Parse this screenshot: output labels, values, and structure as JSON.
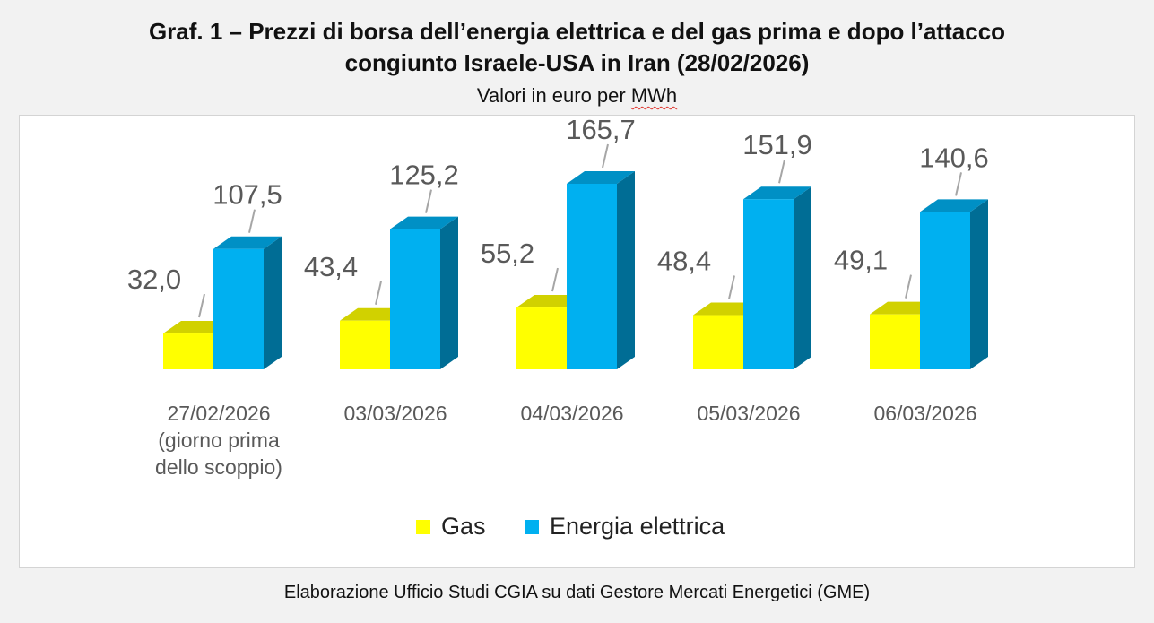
{
  "header": {
    "title_line1": "Graf. 1 – Prezzi di borsa dell’energia elettrica e del gas prima e dopo l’attacco",
    "title_line2": "congiunto Israele-USA in Iran (28/02/2026)",
    "subtitle_prefix": "Valori in euro per ",
    "subtitle_unit": "MWh"
  },
  "footer": {
    "source": "Elaborazione Ufficio Studi CGIA su dati Gestore Mercati Energetici (GME)"
  },
  "chart_data": {
    "type": "bar",
    "style": "3d-clustered-column",
    "title": "Graf. 1 – Prezzi di borsa dell’energia elettrica e del gas prima e dopo l’attacco congiunto Israele-USA in Iran (28/02/2026)",
    "subtitle": "Valori in euro per MWh",
    "categories": [
      [
        "27/02/2026",
        "(giorno prima",
        "dello scoppio)"
      ],
      [
        "03/03/2026"
      ],
      [
        "04/03/2026"
      ],
      [
        "05/03/2026"
      ],
      [
        "06/03/2026"
      ]
    ],
    "series": [
      {
        "name": "Gas",
        "color": "#ffff00",
        "values": [
          32.0,
          43.4,
          55.2,
          48.4,
          49.1
        ],
        "labels": [
          "32,0",
          "43,4",
          "55,2",
          "48,4",
          "49,1"
        ]
      },
      {
        "name": "Energia elettrica",
        "color": "#00b0f0",
        "values": [
          107.5,
          125.2,
          165.7,
          151.9,
          140.6
        ],
        "labels": [
          "107,5",
          "125,2",
          "165,7",
          "151,9",
          "140,6"
        ]
      }
    ],
    "ylim": [
      0,
      165.7
    ],
    "grid": false,
    "legend": "bottom-center"
  }
}
